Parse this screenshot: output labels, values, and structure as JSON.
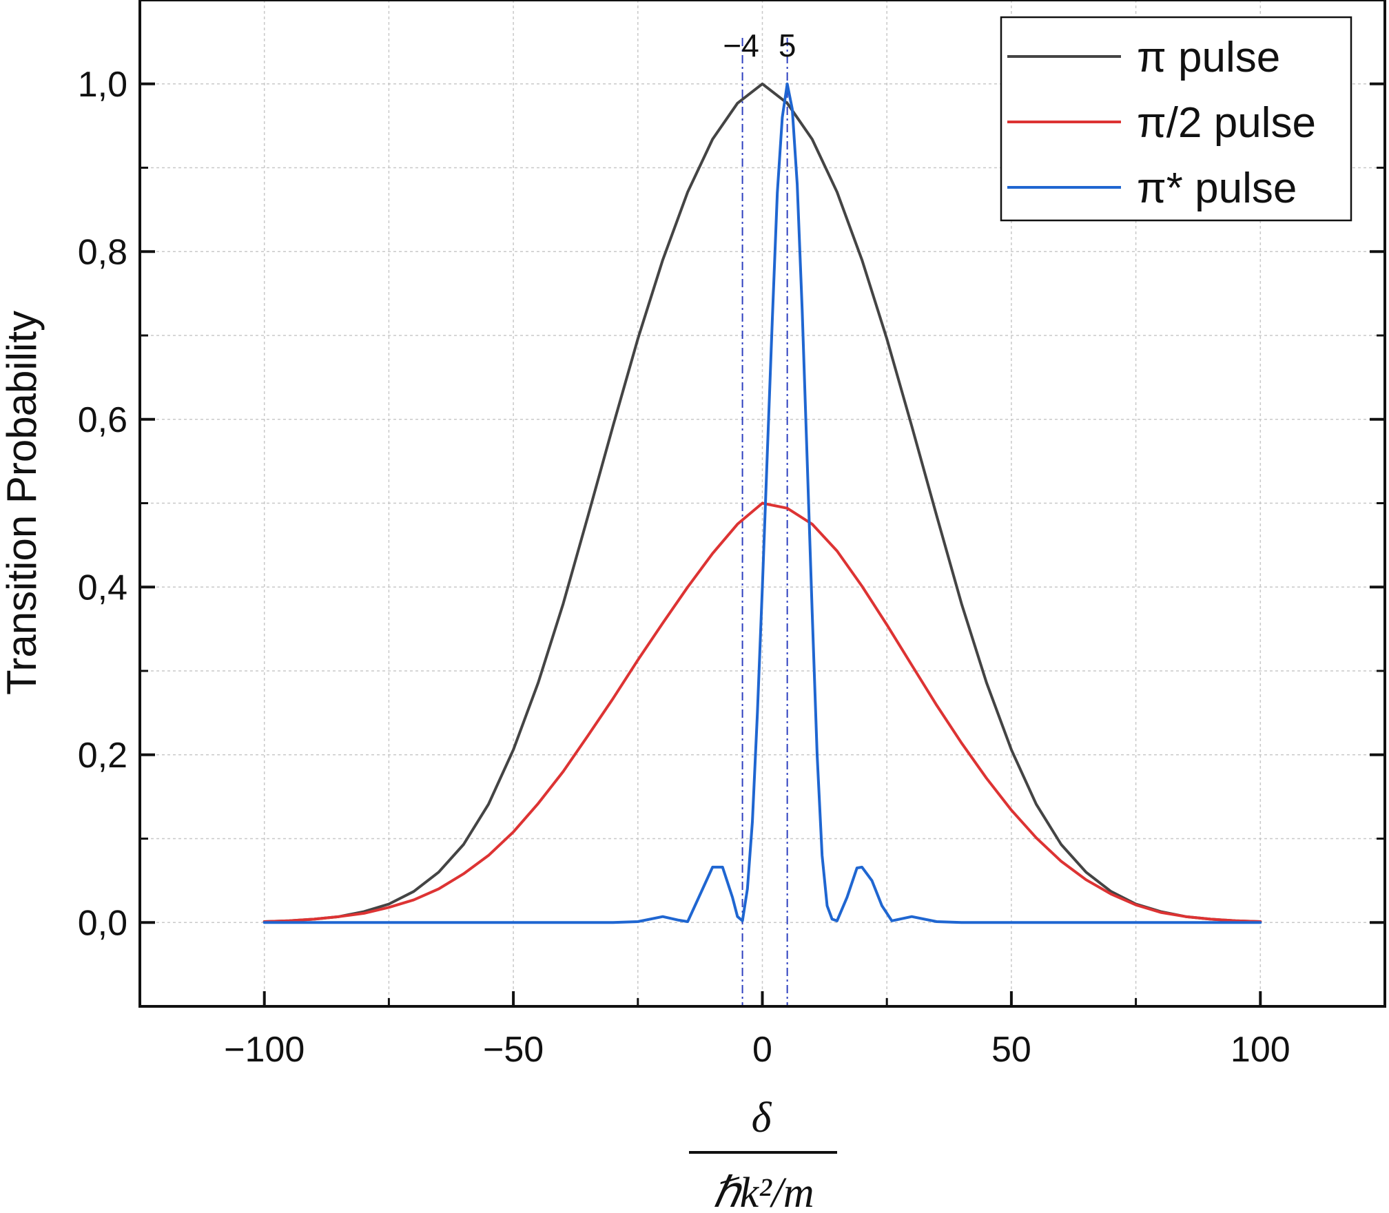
{
  "chart_data": {
    "type": "line",
    "title": "",
    "xlabel": {
      "numerator": "δ",
      "denominator": "ℏk²/m"
    },
    "ylabel": "Transition Probability",
    "xlim": [
      -125,
      125
    ],
    "ylim": [
      -0.1,
      1.1
    ],
    "xticks": [
      -100,
      -50,
      0,
      50,
      100
    ],
    "xtick_labels": [
      "−100",
      "−50",
      "0",
      "50",
      "100"
    ],
    "yticks": [
      0.0,
      0.2,
      0.4,
      0.6,
      0.8,
      1.0
    ],
    "ytick_labels": [
      "0,0",
      "0,2",
      "0,4",
      "0,6",
      "0,8",
      "1,0"
    ],
    "grid": true,
    "legend_position": "top-right",
    "vertical_markers": [
      {
        "x": -4,
        "label": "−4"
      },
      {
        "x": 5,
        "label": "5"
      }
    ],
    "series": [
      {
        "name": "π pulse",
        "color": "#444444",
        "x": [
          -100,
          -95,
          -90,
          -85,
          -80,
          -75,
          -70,
          -65,
          -60,
          -55,
          -50,
          -45,
          -40,
          -35,
          -30,
          -25,
          -20,
          -15,
          -10,
          -5,
          0,
          5,
          10,
          15,
          20,
          25,
          30,
          35,
          40,
          45,
          50,
          55,
          60,
          65,
          70,
          75,
          80,
          85,
          90,
          95,
          100
        ],
        "values": [
          0.001,
          0.002,
          0.004,
          0.007,
          0.013,
          0.022,
          0.037,
          0.06,
          0.093,
          0.141,
          0.206,
          0.286,
          0.38,
          0.485,
          0.592,
          0.696,
          0.79,
          0.871,
          0.934,
          0.977,
          1.0,
          0.977,
          0.934,
          0.871,
          0.79,
          0.696,
          0.592,
          0.485,
          0.38,
          0.286,
          0.206,
          0.141,
          0.093,
          0.06,
          0.037,
          0.022,
          0.013,
          0.007,
          0.004,
          0.002,
          0.001
        ]
      },
      {
        "name": "π/2 pulse",
        "color": "#dd3333",
        "x": [
          -100,
          -95,
          -90,
          -85,
          -80,
          -75,
          -70,
          -65,
          -60,
          -55,
          -50,
          -45,
          -40,
          -35,
          -30,
          -25,
          -20,
          -15,
          -10,
          -5,
          0,
          5,
          10,
          15,
          20,
          25,
          30,
          35,
          40,
          45,
          50,
          55,
          60,
          65,
          70,
          75,
          80,
          85,
          90,
          95,
          100
        ],
        "values": [
          0.001,
          0.002,
          0.004,
          0.007,
          0.011,
          0.018,
          0.027,
          0.04,
          0.058,
          0.08,
          0.108,
          0.142,
          0.18,
          0.223,
          0.267,
          0.313,
          0.357,
          0.4,
          0.44,
          0.475,
          0.5,
          0.494,
          0.475,
          0.443,
          0.401,
          0.355,
          0.307,
          0.259,
          0.214,
          0.172,
          0.134,
          0.101,
          0.073,
          0.051,
          0.034,
          0.021,
          0.012,
          0.007,
          0.004,
          0.002,
          0.001
        ]
      },
      {
        "name": "π* pulse",
        "color": "#1f66d1",
        "x": [
          -100,
          -40,
          -30,
          -25,
          -20,
          -17,
          -15,
          -12,
          -10,
          -8,
          -6,
          -5,
          -4,
          -3,
          -2,
          -1,
          0,
          1,
          2,
          3,
          4,
          5,
          6,
          7,
          8,
          9,
          10,
          11,
          12,
          13,
          14,
          15,
          17,
          19,
          20,
          22,
          24,
          26,
          30,
          35,
          40,
          100
        ],
        "values": [
          0.0,
          0.0,
          0.0,
          0.001,
          0.007,
          0.003,
          0.001,
          0.04,
          0.066,
          0.066,
          0.03,
          0.007,
          0.002,
          0.04,
          0.12,
          0.25,
          0.4,
          0.56,
          0.72,
          0.87,
          0.96,
          1.0,
          0.97,
          0.88,
          0.73,
          0.55,
          0.37,
          0.2,
          0.08,
          0.02,
          0.004,
          0.002,
          0.03,
          0.065,
          0.066,
          0.05,
          0.02,
          0.002,
          0.007,
          0.001,
          0.0,
          0.0
        ]
      }
    ]
  }
}
